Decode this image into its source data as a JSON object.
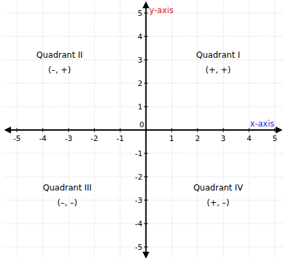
{
  "chart_data": {
    "type": "coordinate_plane",
    "x_label": "x-axis",
    "y_label": "y-axis",
    "xlim": [
      -5.5,
      5.3
    ],
    "ylim": [
      -5.5,
      5.5
    ],
    "xticks": [
      -5,
      -4,
      -3,
      -2,
      -1,
      0,
      1,
      2,
      3,
      4,
      5
    ],
    "yticks": [
      -5,
      -4,
      -3,
      -2,
      -1,
      1,
      2,
      3,
      4,
      5
    ],
    "grid": true,
    "annotations": [
      {
        "text": "Quadrant I",
        "x": 2.8,
        "y": 3.25
      },
      {
        "text": "(+, +)",
        "x": 2.8,
        "y": 2.6
      },
      {
        "text": "Quadrant II",
        "x": -3.35,
        "y": 3.25
      },
      {
        "text": "(–, +)",
        "x": -3.35,
        "y": 2.6
      },
      {
        "text": "Quadrant III",
        "x": -3.05,
        "y": -2.45
      },
      {
        "text": "(–, –)",
        "x": -3.05,
        "y": -3.1
      },
      {
        "text": "Quadrant IV",
        "x": 2.8,
        "y": -2.45
      },
      {
        "text": "(+, –)",
        "x": 2.8,
        "y": -3.1
      }
    ]
  }
}
